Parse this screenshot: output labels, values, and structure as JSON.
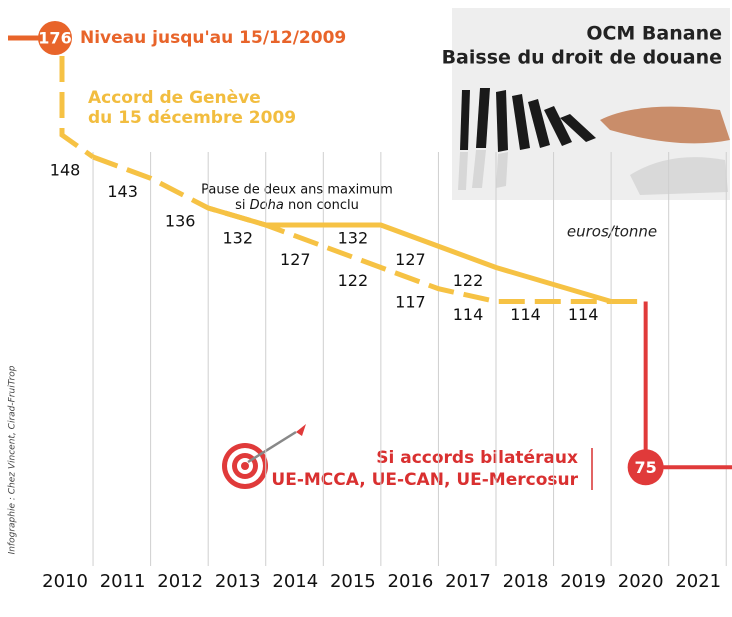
{
  "chart_data": {
    "type": "line",
    "title": "OCM Banane",
    "subtitle": "Baisse du droit de douane",
    "unit": "euros/tonne",
    "source": "Infographie : Chez Vincent, Cirad-FruiTrop",
    "xlim": [
      2009.2,
      2021.1
    ],
    "xticks": [
      2010,
      2011,
      2012,
      2013,
      2014,
      2015,
      2016,
      2017,
      2018,
      2019,
      2020,
      2021
    ],
    "ylim": [
      70,
      180
    ],
    "grid": true,
    "start": {
      "value": 176,
      "label": "Niveau jusqu'au 15/12/2009",
      "color": "#e8642a"
    },
    "series": [
      {
        "x": [
          2010,
          2011,
          2012,
          2013,
          2014,
          2015,
          2016,
          2017,
          2018,
          2019
        ],
        "values": [
          148,
          143,
          136,
          132,
          127,
          122,
          117,
          114,
          114,
          114
        ],
        "color": "#f6c244",
        "dashed": true
      },
      {
        "x": [
          2012,
          2013,
          2015,
          2016,
          2017,
          2019
        ],
        "values": [
          136,
          132,
          132,
          127,
          122,
          114
        ],
        "color": "#f6c244",
        "dashed": false
      }
    ],
    "geneva_note": [
      "Accord de Genève",
      "du 15 décembre 2009"
    ],
    "pause_note": {
      "line1": "Pause de deux ans maximum",
      "line2": [
        "si ",
        "Doha",
        " non conclu"
      ]
    },
    "bilateral": {
      "x": 2019.6,
      "value": 75,
      "color": "#e03a3a",
      "text": [
        "Si accords bilatéraux",
        "UE-MCCA, UE-CAN, UE-Mercosur"
      ]
    }
  }
}
